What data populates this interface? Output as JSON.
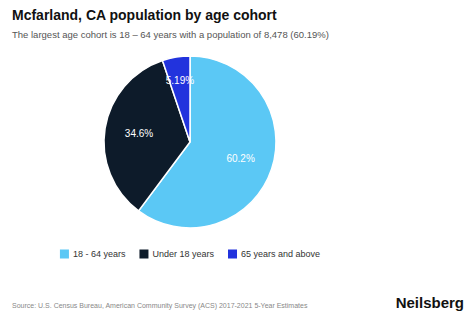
{
  "chart_data": {
    "type": "pie",
    "title": "Mcfarland, CA population by age cohort",
    "subtitle": "The largest age cohort is 18 – 64 years with a population of 8,478 (60.19%)",
    "categories": [
      "18 - 64 years",
      "Under 18 years",
      "65 years and above"
    ],
    "values": [
      60.2,
      34.6,
      5.19
    ],
    "value_labels": [
      "60.2%",
      "34.6%",
      "5.19%"
    ],
    "data_labels": true,
    "colors": [
      "#5bc8f5",
      "#0d1b2a",
      "#2233dd"
    ],
    "legend": "bottom",
    "annotations": [
      "Source: U.S. Census Bureau, American Community Survey (ACS) 2017-2021 5-Year Estimates",
      "Neilsberg"
    ]
  }
}
